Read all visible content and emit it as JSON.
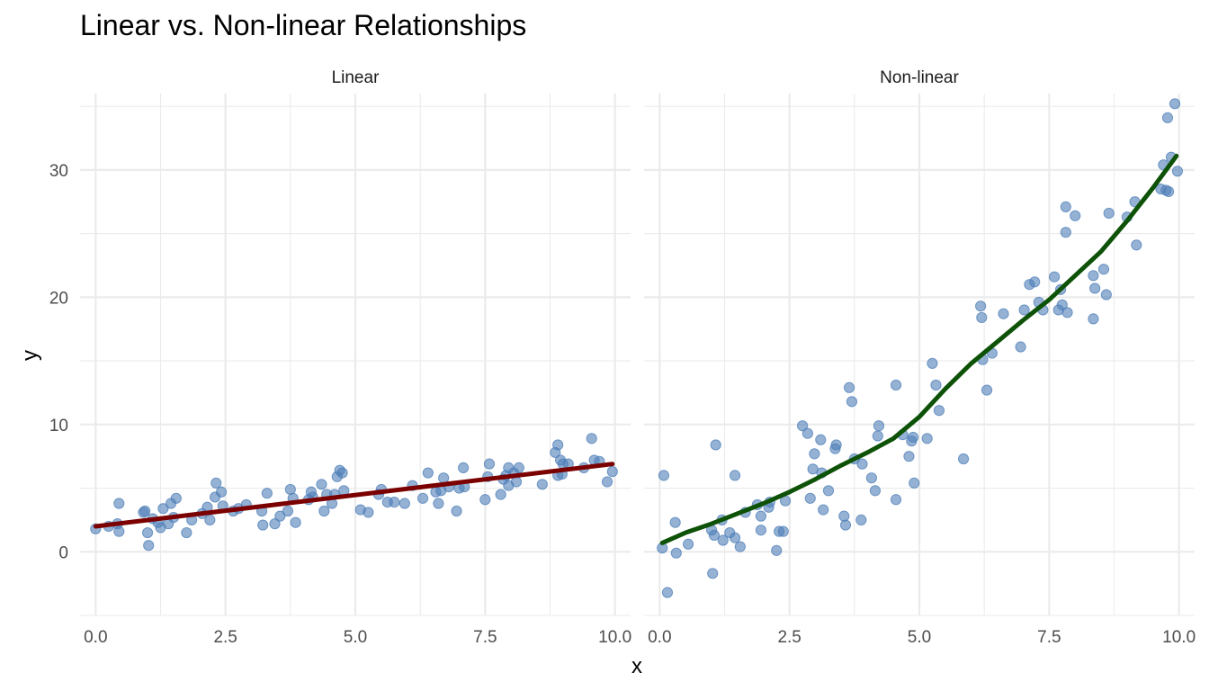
{
  "chart_data": {
    "type": "scatter",
    "title": "Linear vs. Non-linear Relationships",
    "xlabel": "x",
    "ylabel": "y",
    "xlim": [
      -0.3,
      10.3
    ],
    "ylim": [
      -5,
      36
    ],
    "x_ticks": [
      0,
      2.5,
      5,
      7.5,
      10
    ],
    "x_tick_labels": [
      "0.0",
      "2.5",
      "5.0",
      "7.5",
      "10.0"
    ],
    "y_ticks": [
      0,
      10,
      20,
      30
    ],
    "y_tick_labels": [
      "0",
      "10",
      "20",
      "30"
    ],
    "grid": true,
    "legend": "none",
    "point_color": "#4f7fb8",
    "panels": [
      {
        "name": "Linear",
        "line_color": "#7b0000",
        "points": [
          [
            0.0,
            1.8
          ],
          [
            0.25,
            2.0
          ],
          [
            0.42,
            2.2
          ],
          [
            0.45,
            3.8
          ],
          [
            0.45,
            1.6
          ],
          [
            0.92,
            3.1
          ],
          [
            0.95,
            3.2
          ],
          [
            1.0,
            1.5
          ],
          [
            1.02,
            0.5
          ],
          [
            1.1,
            2.6
          ],
          [
            1.2,
            2.3
          ],
          [
            1.25,
            1.9
          ],
          [
            1.3,
            3.4
          ],
          [
            1.4,
            2.2
          ],
          [
            1.45,
            3.8
          ],
          [
            1.5,
            2.7
          ],
          [
            1.55,
            4.2
          ],
          [
            1.75,
            1.5
          ],
          [
            1.85,
            2.5
          ],
          [
            2.05,
            3.0
          ],
          [
            2.15,
            3.5
          ],
          [
            2.2,
            2.5
          ],
          [
            2.3,
            4.3
          ],
          [
            2.32,
            5.4
          ],
          [
            2.42,
            4.7
          ],
          [
            2.45,
            3.6
          ],
          [
            2.65,
            3.2
          ],
          [
            2.75,
            3.4
          ],
          [
            2.9,
            3.7
          ],
          [
            3.2,
            3.2
          ],
          [
            3.22,
            2.1
          ],
          [
            3.3,
            4.6
          ],
          [
            3.45,
            2.2
          ],
          [
            3.55,
            2.8
          ],
          [
            3.7,
            3.2
          ],
          [
            3.75,
            4.9
          ],
          [
            3.8,
            4.2
          ],
          [
            3.85,
            2.3
          ],
          [
            4.1,
            4.1
          ],
          [
            4.15,
            4.7
          ],
          [
            4.18,
            4.3
          ],
          [
            4.35,
            5.3
          ],
          [
            4.4,
            3.2
          ],
          [
            4.45,
            4.5
          ],
          [
            4.55,
            3.8
          ],
          [
            4.6,
            4.5
          ],
          [
            4.65,
            5.9
          ],
          [
            4.7,
            6.4
          ],
          [
            4.75,
            6.2
          ],
          [
            4.78,
            4.8
          ],
          [
            5.1,
            3.3
          ],
          [
            5.25,
            3.1
          ],
          [
            5.45,
            4.5
          ],
          [
            5.5,
            4.9
          ],
          [
            5.62,
            3.9
          ],
          [
            5.75,
            3.9
          ],
          [
            5.95,
            3.8
          ],
          [
            6.1,
            5.2
          ],
          [
            6.3,
            4.2
          ],
          [
            6.4,
            6.2
          ],
          [
            6.55,
            4.7
          ],
          [
            6.6,
            3.8
          ],
          [
            6.65,
            4.8
          ],
          [
            6.7,
            5.8
          ],
          [
            6.8,
            5.1
          ],
          [
            6.95,
            3.2
          ],
          [
            7.0,
            5.0
          ],
          [
            7.08,
            6.6
          ],
          [
            7.1,
            5.1
          ],
          [
            7.5,
            4.1
          ],
          [
            7.55,
            5.9
          ],
          [
            7.58,
            6.9
          ],
          [
            7.8,
            4.5
          ],
          [
            7.85,
            5.7
          ],
          [
            7.9,
            6.0
          ],
          [
            7.95,
            6.6
          ],
          [
            7.95,
            5.2
          ],
          [
            8.05,
            6.2
          ],
          [
            8.1,
            5.5
          ],
          [
            8.15,
            6.6
          ],
          [
            8.6,
            5.3
          ],
          [
            8.85,
            7.8
          ],
          [
            8.9,
            8.4
          ],
          [
            8.9,
            6.0
          ],
          [
            8.95,
            7.2
          ],
          [
            8.98,
            6.1
          ],
          [
            9.0,
            6.9
          ],
          [
            9.1,
            6.9
          ],
          [
            9.4,
            6.6
          ],
          [
            9.55,
            8.9
          ],
          [
            9.6,
            7.2
          ],
          [
            9.7,
            7.1
          ],
          [
            9.85,
            5.5
          ],
          [
            9.95,
            6.3
          ]
        ],
        "fit": [
          [
            0.0,
            2.0
          ],
          [
            9.95,
            6.9
          ]
        ]
      },
      {
        "name": "Non-linear",
        "line_color": "#0e5208",
        "points": [
          [
            0.05,
            0.3
          ],
          [
            0.08,
            6.0
          ],
          [
            0.15,
            -3.2
          ],
          [
            0.3,
            2.3
          ],
          [
            0.32,
            -0.1
          ],
          [
            0.55,
            0.6
          ],
          [
            1.0,
            1.7
          ],
          [
            1.02,
            -1.7
          ],
          [
            1.05,
            1.3
          ],
          [
            1.08,
            8.4
          ],
          [
            1.2,
            2.5
          ],
          [
            1.22,
            0.9
          ],
          [
            1.35,
            1.5
          ],
          [
            1.45,
            6.0
          ],
          [
            1.45,
            1.1
          ],
          [
            1.55,
            0.4
          ],
          [
            1.65,
            3.1
          ],
          [
            1.88,
            3.7
          ],
          [
            1.95,
            1.7
          ],
          [
            1.95,
            2.8
          ],
          [
            2.1,
            3.5
          ],
          [
            2.12,
            3.9
          ],
          [
            2.25,
            0.1
          ],
          [
            2.3,
            1.6
          ],
          [
            2.38,
            1.6
          ],
          [
            2.42,
            4.0
          ],
          [
            2.75,
            9.9
          ],
          [
            2.85,
            9.3
          ],
          [
            2.9,
            4.2
          ],
          [
            2.95,
            6.5
          ],
          [
            2.98,
            7.7
          ],
          [
            3.1,
            8.8
          ],
          [
            3.12,
            6.2
          ],
          [
            3.15,
            3.3
          ],
          [
            3.25,
            4.8
          ],
          [
            3.38,
            8.1
          ],
          [
            3.4,
            8.4
          ],
          [
            3.55,
            2.8
          ],
          [
            3.58,
            2.1
          ],
          [
            3.65,
            12.9
          ],
          [
            3.7,
            11.8
          ],
          [
            3.75,
            7.3
          ],
          [
            3.88,
            2.5
          ],
          [
            3.9,
            6.9
          ],
          [
            4.08,
            5.8
          ],
          [
            4.15,
            4.8
          ],
          [
            4.2,
            9.1
          ],
          [
            4.22,
            9.9
          ],
          [
            4.55,
            13.1
          ],
          [
            4.55,
            4.1
          ],
          [
            4.68,
            9.2
          ],
          [
            4.8,
            7.5
          ],
          [
            4.85,
            8.7
          ],
          [
            4.88,
            9.0
          ],
          [
            4.9,
            5.4
          ],
          [
            5.15,
            8.9
          ],
          [
            5.25,
            14.8
          ],
          [
            5.32,
            13.1
          ],
          [
            5.38,
            11.1
          ],
          [
            5.85,
            7.3
          ],
          [
            6.18,
            19.3
          ],
          [
            6.2,
            18.4
          ],
          [
            6.22,
            15.1
          ],
          [
            6.3,
            12.7
          ],
          [
            6.4,
            15.6
          ],
          [
            6.62,
            18.7
          ],
          [
            6.95,
            16.1
          ],
          [
            7.02,
            19.0
          ],
          [
            7.12,
            21.0
          ],
          [
            7.22,
            21.2
          ],
          [
            7.3,
            19.6
          ],
          [
            7.38,
            19.0
          ],
          [
            7.6,
            21.6
          ],
          [
            7.68,
            19.0
          ],
          [
            7.72,
            20.6
          ],
          [
            7.75,
            19.4
          ],
          [
            7.82,
            27.1
          ],
          [
            7.85,
            18.8
          ],
          [
            7.82,
            25.1
          ],
          [
            8.0,
            26.4
          ],
          [
            8.35,
            21.7
          ],
          [
            8.35,
            18.3
          ],
          [
            8.38,
            20.7
          ],
          [
            8.55,
            22.2
          ],
          [
            8.6,
            20.2
          ],
          [
            8.65,
            26.6
          ],
          [
            9.0,
            26.3
          ],
          [
            9.15,
            27.5
          ],
          [
            9.18,
            24.1
          ],
          [
            9.65,
            28.5
          ],
          [
            9.7,
            30.4
          ],
          [
            9.75,
            28.4
          ],
          [
            9.78,
            34.1
          ],
          [
            9.8,
            28.3
          ],
          [
            9.85,
            31.0
          ],
          [
            9.92,
            35.2
          ],
          [
            9.97,
            29.9
          ]
        ],
        "fit": [
          [
            0.05,
            0.7
          ],
          [
            0.5,
            1.5
          ],
          [
            1.0,
            2.2
          ],
          [
            1.5,
            3.0
          ],
          [
            2.0,
            3.8
          ],
          [
            2.5,
            4.7
          ],
          [
            3.0,
            5.7
          ],
          [
            3.5,
            6.8
          ],
          [
            4.0,
            7.8
          ],
          [
            4.5,
            8.9
          ],
          [
            5.0,
            10.6
          ],
          [
            5.5,
            12.8
          ],
          [
            6.0,
            14.8
          ],
          [
            6.5,
            16.5
          ],
          [
            7.0,
            18.2
          ],
          [
            7.5,
            19.8
          ],
          [
            8.0,
            21.7
          ],
          [
            8.5,
            23.6
          ],
          [
            9.0,
            26.0
          ],
          [
            9.5,
            28.6
          ],
          [
            9.95,
            31.1
          ]
        ]
      }
    ]
  }
}
